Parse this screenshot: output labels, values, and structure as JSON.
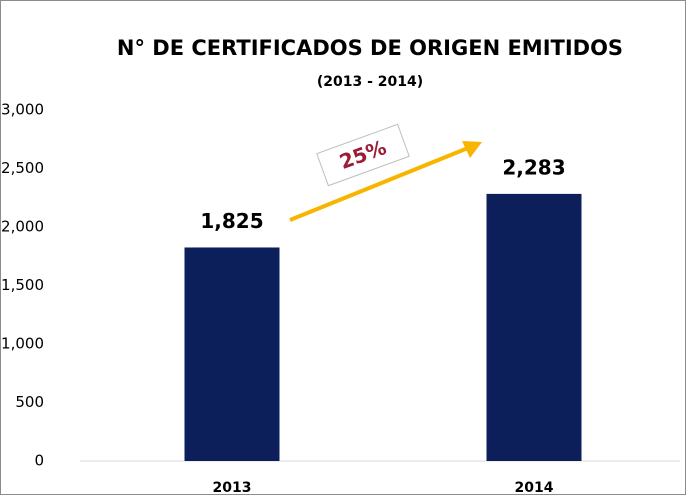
{
  "chart_data": {
    "type": "bar",
    "title": "N° DE CERTIFICADOS DE ORIGEN EMITIDOS",
    "subtitle": "(2013 - 2014)",
    "categories": [
      "2013",
      "2014"
    ],
    "values": [
      1825,
      2283
    ],
    "value_labels": [
      "1,825",
      "2,283"
    ],
    "color": "#0c1f5b",
    "ylim": [
      0,
      3000
    ],
    "yticks": [
      0,
      500,
      {
        "value": 1000,
        "label": "1,000"
      },
      {
        "value": 1500,
        "label": "1,500"
      },
      {
        "value": 2000,
        "label": "2,000"
      },
      {
        "value": 2500,
        "label": "2,500"
      },
      {
        "value": 3000,
        "label": "3,000"
      }
    ],
    "grid": false,
    "annotation": "25%"
  }
}
